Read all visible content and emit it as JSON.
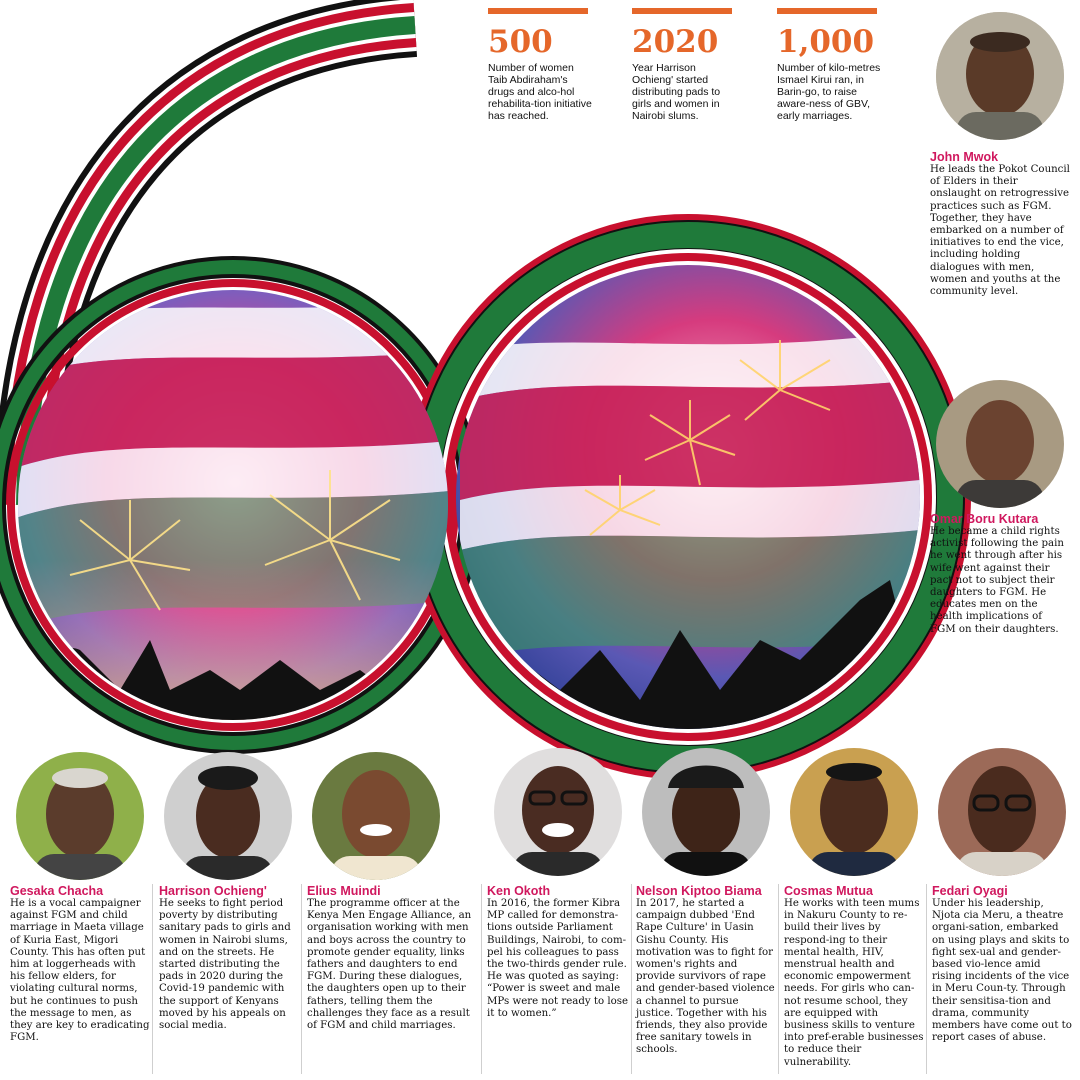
{
  "stats": [
    {
      "number": "500",
      "desc": "Number of women Taib Abdiraham's drugs and alco-hol rehabilita-tion initiative has reached."
    },
    {
      "number": "2020",
      "desc": "Year Harrison Ochieng' started distributing pads to girls and women in Nairobi slums."
    },
    {
      "number": "1,000",
      "desc": "Number of kilo-metres Ismael Kirui ran, in Barin-go, to raise aware-ness of GBV, early marriages."
    }
  ],
  "right_profiles": [
    {
      "name": "John Mwok",
      "bio": "He leads the Pokot Council of Elders in their onslaught on retrogressive practices such as FGM. Together, they have embarked on a number of initiatives to end the vice, including holding dialogues with men, women and youths at the community level."
    },
    {
      "name": "Omar Boru Kutara",
      "bio": "He became a child rights activist following the pain he went through after his wife went against their pact not to subject their daughters to FGM. He educates men on the health implications of FGM on their daughters."
    }
  ],
  "bottom_profiles": [
    {
      "name": "Gesaka Chacha",
      "bio": "He is a vocal campaigner against FGM and child marriage in Maeta village of Kuria East, Migori County. This has often put him at loggerheads with his fellow elders, for violating cultural norms, but he continues to push the message to men, as they are key to eradicating FGM."
    },
    {
      "name": "Harrison Ochieng'",
      "bio": "He seeks to fight period poverty by distributing sanitary pads to girls and women in Nairobi slums, and on the streets. He started distributing the pads in 2020 during the Covid-19 pandemic with the support of Kenyans moved by his appeals on social media."
    },
    {
      "name": "Elius Muindi",
      "bio": "The programme officer at the Kenya Men Engage Alliance, an organisation working with men and boys across the country to promote gender equality, links fathers and daughters to end FGM. During these dialogues, the daughters open up to their fathers, telling them the challenges they face as a result of FGM and child marriages."
    },
    {
      "name": "Ken Okoth",
      "bio": "In 2016, the former Kibra MP called for demonstra-tions outside Parliament Buildings, Nairobi, to com-pel his colleagues to pass the two-thirds gender rule. He was quoted as saying: “Power is sweet and male MPs were not ready to lose it to women.”"
    },
    {
      "name": "Nelson Kiptoo Biama",
      "bio": "In 2017, he started a campaign dubbed 'End Rape Culture' in Uasin Gishu County. His motivation was to fight for women's rights and provide survivors of rape and gender-based violence a channel to pursue justice. Together with his friends, they also provide free sanitary towels in schools."
    },
    {
      "name": "Cosmas Mutua",
      "bio": "He works with teen mums in Nakuru County to re-build their lives by respond-ing to their mental health, HIV, menstrual health and economic empowerment needs. For girls who can-not resume school, they are equipped with business skills to venture into pref-erable businesses to reduce their vulnerability."
    },
    {
      "name": "Fedari Oyagi",
      "bio": "Under his leadership, Njota cia Meru, a theatre organi-sation, embarked on using plays and skits to fight sex-ual and gender-based vio-lence amid rising incidents of the vice in Meru Coun-ty. Through their sensitisa-tion and drama, community members have come out to report cases of abuse."
    }
  ],
  "colors": {
    "accent_orange": "#e5672a",
    "name_pink": "#d0185e",
    "kenya_green": "#1f7a3a",
    "kenya_red": "#c8102e",
    "kenya_black": "#111111"
  }
}
